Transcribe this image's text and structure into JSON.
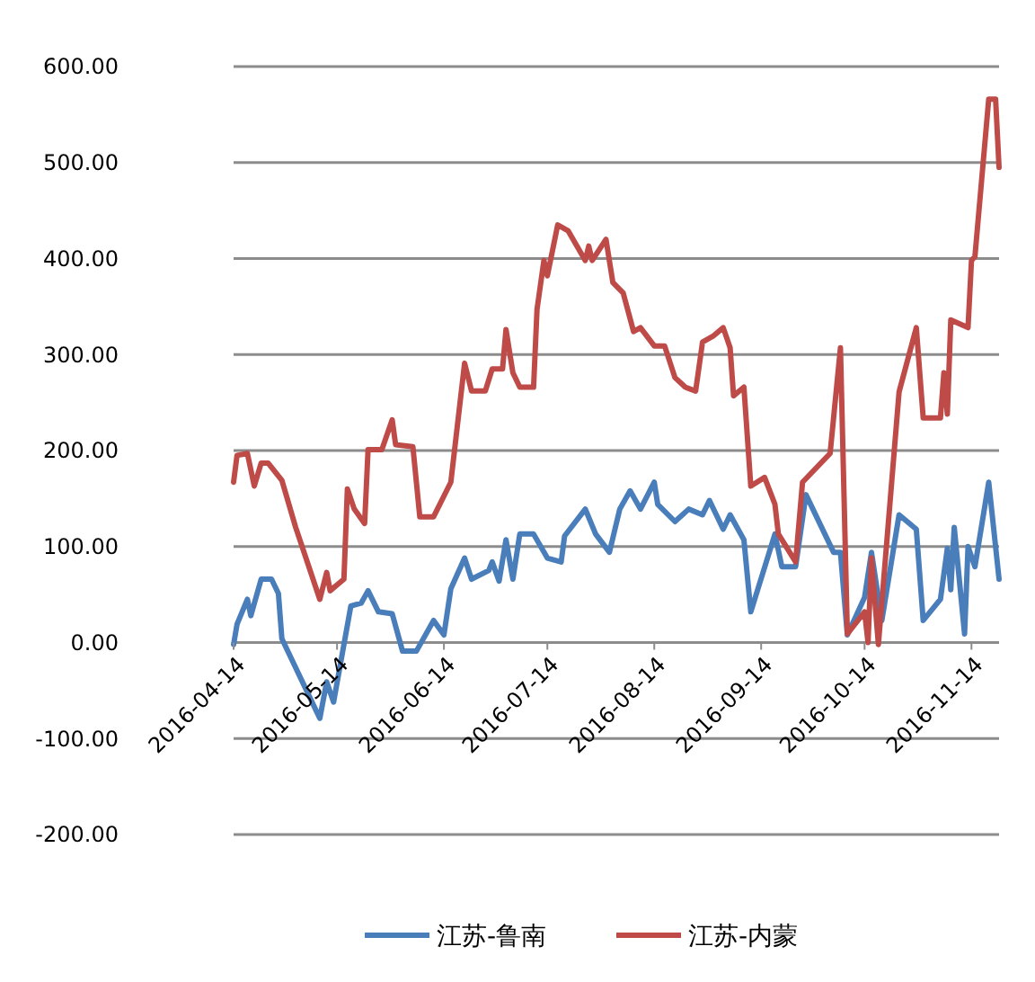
{
  "chart_data": {
    "type": "line",
    "xlim": [
      "2016-04-14",
      "2016-11-22"
    ],
    "xticks": [
      {
        "value": "2016-04-14",
        "label": "2016-04-14"
      },
      {
        "value": "2016-05-14",
        "label": "2016-05-14"
      },
      {
        "value": "2016-06-14",
        "label": "2016-06-14"
      },
      {
        "value": "2016-07-14",
        "label": "2016-07-14"
      },
      {
        "value": "2016-08-14",
        "label": "2016-08-14"
      },
      {
        "value": "2016-09-14",
        "label": "2016-09-14"
      },
      {
        "value": "2016-10-14",
        "label": "2016-10-14"
      },
      {
        "value": "2016-11-14",
        "label": "2016-11-14"
      }
    ],
    "ylim": [
      -200,
      600
    ],
    "yticks": [
      {
        "value": -200,
        "label": "-200.00"
      },
      {
        "value": -100,
        "label": "-100.00"
      },
      {
        "value": 0,
        "label": "0.00"
      },
      {
        "value": 100,
        "label": "100.00"
      },
      {
        "value": 200,
        "label": "200.00"
      },
      {
        "value": 300,
        "label": "300.00"
      },
      {
        "value": 400,
        "label": "400.00"
      },
      {
        "value": 500,
        "label": "500.00"
      },
      {
        "value": 600,
        "label": "600.00"
      }
    ],
    "grid": "y",
    "legend": "bottom",
    "marker": "none",
    "line_style": "solid",
    "series": [
      {
        "name": "江苏-鲁南",
        "color": "#4a7ebb",
        "x": [
          "2016-04-14",
          "2016-04-15",
          "2016-04-18",
          "2016-04-19",
          "2016-04-22",
          "2016-04-25",
          "2016-04-27",
          "2016-04-28",
          "2016-05-09",
          "2016-05-11",
          "2016-05-13",
          "2016-05-18",
          "2016-05-21",
          "2016-05-23",
          "2016-05-26",
          "2016-05-30",
          "2016-06-02",
          "2016-06-06",
          "2016-06-11",
          "2016-06-14",
          "2016-06-16",
          "2016-06-20",
          "2016-06-22",
          "2016-06-27",
          "2016-06-28",
          "2016-06-30",
          "2016-07-02",
          "2016-07-04",
          "2016-07-06",
          "2016-07-10",
          "2016-07-14",
          "2016-07-18",
          "2016-07-19",
          "2016-07-25",
          "2016-07-28",
          "2016-08-01",
          "2016-08-04",
          "2016-08-07",
          "2016-08-10",
          "2016-08-14",
          "2016-08-15",
          "2016-08-20",
          "2016-08-24",
          "2016-08-28",
          "2016-08-30",
          "2016-09-03",
          "2016-09-05",
          "2016-09-09",
          "2016-09-11",
          "2016-09-18",
          "2016-09-20",
          "2016-09-24",
          "2016-09-27",
          "2016-10-05",
          "2016-10-07",
          "2016-10-09",
          "2016-10-14",
          "2016-10-16",
          "2016-10-19",
          "2016-10-24",
          "2016-10-29",
          "2016-10-31",
          "2016-11-05",
          "2016-11-07",
          "2016-11-08",
          "2016-11-09",
          "2016-11-12",
          "2016-11-13",
          "2016-11-15",
          "2016-11-19",
          "2016-11-22"
        ],
        "values": [
          -2,
          19,
          45,
          28,
          66,
          66,
          51,
          4,
          -79,
          -41,
          -62,
          38,
          41,
          54,
          32,
          30,
          -9,
          -9,
          23,
          8,
          56,
          88,
          66,
          75,
          84,
          64,
          107,
          66,
          113,
          113,
          88,
          84,
          111,
          139,
          113,
          94,
          139,
          158,
          139,
          167,
          144,
          126,
          139,
          133,
          148,
          118,
          133,
          107,
          32,
          113,
          79,
          79,
          154,
          94,
          94,
          8,
          47,
          94,
          23,
          133,
          118,
          23,
          45,
          98,
          55,
          120,
          9,
          100,
          79,
          167,
          66
        ]
      },
      {
        "name": "江苏-内蒙",
        "color": "#be4b48",
        "x": [
          "2016-04-14",
          "2016-04-15",
          "2016-04-18",
          "2016-04-20",
          "2016-04-22",
          "2016-04-24",
          "2016-04-28",
          "2016-05-02",
          "2016-05-09",
          "2016-05-11",
          "2016-05-12",
          "2016-05-16",
          "2016-05-17",
          "2016-05-19",
          "2016-05-22",
          "2016-05-23",
          "2016-05-27",
          "2016-05-30",
          "2016-05-31",
          "2016-06-05",
          "2016-06-07",
          "2016-06-11",
          "2016-06-16",
          "2016-06-20",
          "2016-06-22",
          "2016-06-26",
          "2016-06-28",
          "2016-07-01",
          "2016-07-02",
          "2016-07-04",
          "2016-07-06",
          "2016-07-10",
          "2016-07-11",
          "2016-07-13",
          "2016-07-14",
          "2016-07-17",
          "2016-07-20",
          "2016-07-25",
          "2016-07-26",
          "2016-07-27",
          "2016-07-31",
          "2016-08-02",
          "2016-08-05",
          "2016-08-08",
          "2016-08-10",
          "2016-08-14",
          "2016-08-17",
          "2016-08-20",
          "2016-08-23",
          "2016-08-26",
          "2016-08-28",
          "2016-08-31",
          "2016-09-03",
          "2016-09-05",
          "2016-09-06",
          "2016-09-09",
          "2016-09-11",
          "2016-09-15",
          "2016-09-18",
          "2016-09-19",
          "2016-09-24",
          "2016-09-26",
          "2016-10-04",
          "2016-10-07",
          "2016-10-09",
          "2016-10-14",
          "2016-10-15",
          "2016-10-16",
          "2016-10-18",
          "2016-10-24",
          "2016-10-29",
          "2016-10-31",
          "2016-11-05",
          "2016-11-06",
          "2016-11-07",
          "2016-11-08",
          "2016-11-13",
          "2016-11-14",
          "2016-11-15",
          "2016-11-19",
          "2016-11-21",
          "2016-11-22"
        ],
        "values": [
          167,
          195,
          197,
          163,
          187,
          187,
          169,
          120,
          45,
          73,
          54,
          66,
          160,
          139,
          124,
          201,
          201,
          232,
          206,
          204,
          131,
          131,
          167,
          291,
          262,
          262,
          285,
          285,
          326,
          281,
          266,
          266,
          347,
          398,
          382,
          435,
          429,
          398,
          413,
          398,
          420,
          375,
          364,
          324,
          328,
          309,
          309,
          276,
          266,
          262,
          313,
          319,
          328,
          307,
          257,
          266,
          163,
          172,
          144,
          113,
          84,
          167,
          197,
          307,
          9,
          32,
          0,
          88,
          -2,
          261,
          328,
          234,
          234,
          281,
          238,
          336,
          328,
          398,
          402,
          566,
          566,
          495
        ]
      }
    ]
  }
}
